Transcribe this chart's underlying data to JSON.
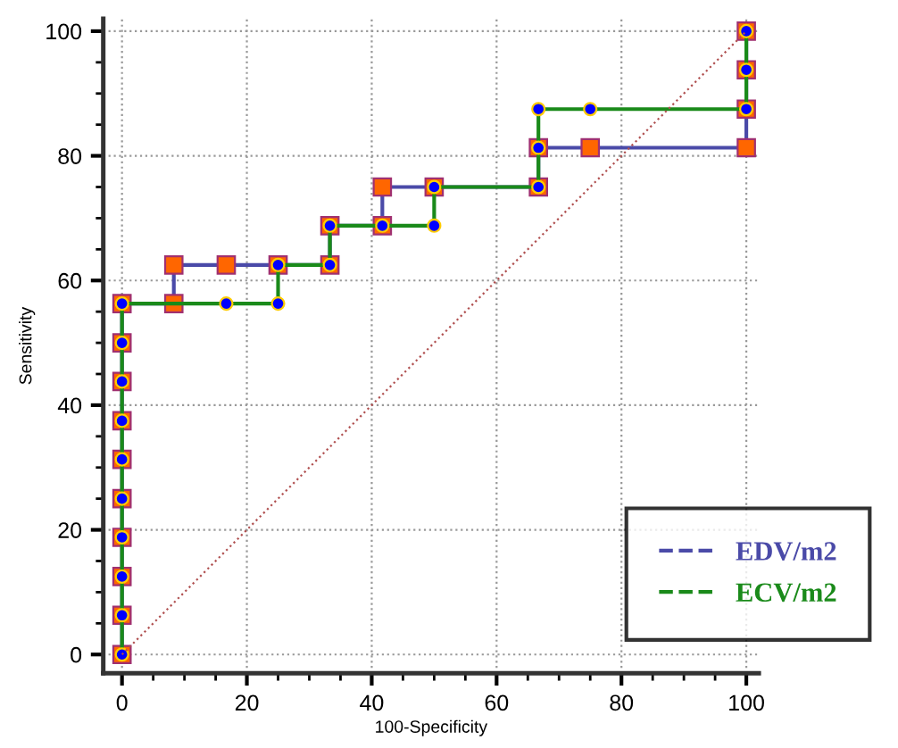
{
  "chart_data": {
    "type": "line",
    "xlabel": "100-Specificity",
    "ylabel": "Sensitivity",
    "xlim": [
      -3,
      102
    ],
    "ylim": [
      -3,
      102
    ],
    "xticks": [
      0,
      20,
      40,
      60,
      80,
      100
    ],
    "yticks": [
      0,
      20,
      40,
      60,
      80,
      100
    ],
    "grid": true,
    "legend": "bottom right",
    "series": [
      {
        "name": "EDV/m2",
        "color": "#4a4aa8",
        "marker": "square",
        "x": [
          0,
          0,
          0,
          0,
          0,
          0,
          0,
          0,
          0,
          0,
          8.3,
          8.3,
          16.7,
          25,
          33.3,
          33.3,
          41.7,
          41.7,
          50,
          66.7,
          66.7,
          75,
          100,
          100,
          100,
          100
        ],
        "values": [
          0,
          6.3,
          12.5,
          18.8,
          25,
          31.3,
          37.5,
          43.8,
          50,
          56.3,
          56.3,
          62.5,
          62.5,
          62.5,
          62.5,
          68.8,
          68.8,
          75,
          75,
          75,
          81.3,
          81.3,
          81.3,
          87.5,
          93.8,
          100
        ]
      },
      {
        "name": "ECV/m2",
        "color": "#1a8a1a",
        "marker": "circle",
        "x": [
          0,
          0,
          0,
          0,
          0,
          0,
          0,
          0,
          0,
          0,
          16.7,
          25,
          25,
          33.3,
          33.3,
          41.7,
          50,
          50,
          66.7,
          66.7,
          66.7,
          75,
          100,
          100,
          100
        ],
        "values": [
          0,
          6.3,
          12.5,
          18.8,
          25,
          31.3,
          37.5,
          43.8,
          50,
          56.3,
          56.3,
          56.3,
          62.5,
          62.5,
          68.8,
          68.8,
          68.8,
          75,
          75,
          81.3,
          87.5,
          87.5,
          87.5,
          93.8,
          100
        ]
      },
      {
        "color": "#b05050",
        "marker": "none",
        "line_style": "dotted",
        "x": [
          0,
          100
        ],
        "values": [
          0,
          100
        ]
      }
    ]
  }
}
